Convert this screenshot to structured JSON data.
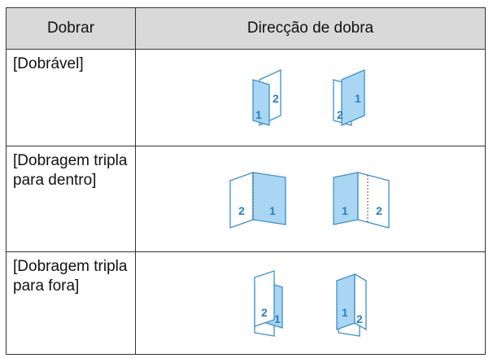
{
  "table": {
    "header": [
      "Dobrar",
      "Direcção de dobra"
    ],
    "rows": [
      {
        "label": "[Dobrável]",
        "icons": [
          [
            "1",
            "2"
          ],
          [
            "2",
            "1"
          ]
        ]
      },
      {
        "label": "[Dobragem tripla para dentro]",
        "icons": [
          [
            "2",
            "1"
          ],
          [
            "1",
            "2"
          ]
        ]
      },
      {
        "label": "[Dobragem tripla para fora]",
        "icons": [
          [
            "2",
            "1"
          ],
          [
            "1",
            "2"
          ]
        ]
      }
    ]
  }
}
